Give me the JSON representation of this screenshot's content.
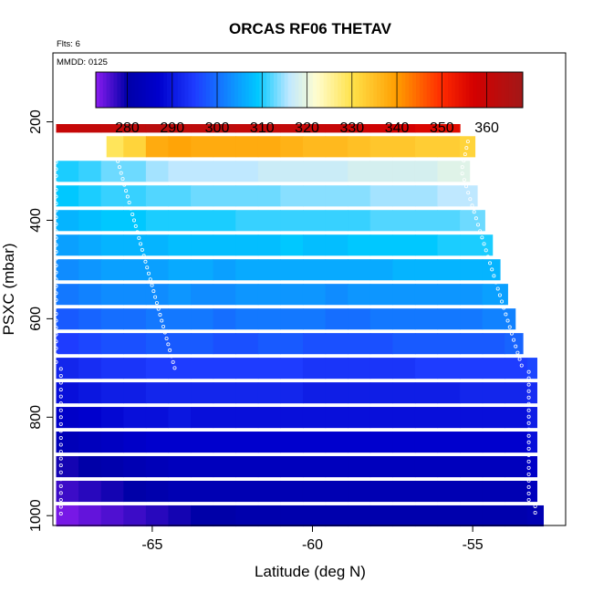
{
  "chart_data": {
    "type": "heatmap",
    "title": "ORCAS RF06 THETAV",
    "flights_note": "Flts: 6",
    "date_note": "MMDD: 0125",
    "xlabel": "Latitude (deg N)",
    "ylabel": "PSXC (mbar)",
    "x_ticks": [
      -65,
      -60,
      -55
    ],
    "y_ticks": [
      200,
      400,
      600,
      800,
      1000
    ],
    "y_reversed": true,
    "colorbar_ticks": [
      280,
      290,
      300,
      310,
      320,
      330,
      340,
      350,
      360
    ],
    "colorbar_range": [
      273,
      368
    ],
    "colorbar_stops": [
      {
        "v": 273,
        "c": "#8b1cf0"
      },
      {
        "v": 280,
        "c": "#0000a8"
      },
      {
        "v": 287,
        "c": "#0000cd"
      },
      {
        "v": 295,
        "c": "#1e3cff"
      },
      {
        "v": 303,
        "c": "#0f8cff"
      },
      {
        "v": 309,
        "c": "#00c8ff"
      },
      {
        "v": 316,
        "c": "#bfe8ff"
      },
      {
        "v": 322,
        "c": "#fffdd0"
      },
      {
        "v": 330,
        "c": "#ffe24a"
      },
      {
        "v": 340,
        "c": "#ff9d00"
      },
      {
        "v": 350,
        "c": "#ff2a00"
      },
      {
        "v": 357,
        "c": "#d40000"
      },
      {
        "v": 368,
        "c": "#a21818"
      }
    ],
    "xlim": [
      -68.1,
      -52.1
    ],
    "ylim": [
      1020,
      60
    ],
    "lat_bins": [
      -68.0,
      -67.3,
      -66.6,
      -65.9,
      -65.2,
      -64.5,
      -63.8,
      -63.1,
      -62.4,
      -61.7,
      -61.0,
      -60.3,
      -59.6,
      -58.9,
      -58.2,
      -57.5,
      -56.8,
      -56.1,
      -55.4,
      -54.7,
      -54.0,
      -53.3,
      -52.8
    ],
    "pressure_levels": [
      {
        "p": 1000,
        "theta": [
          274,
          275,
          276,
          277,
          278,
          279,
          280,
          280,
          281,
          281,
          281,
          281,
          281,
          281,
          281,
          281,
          281,
          281,
          281,
          281,
          281,
          282
        ]
      },
      {
        "p": 950,
        "theta": [
          277,
          278,
          279,
          280,
          281,
          282,
          282,
          282,
          282,
          282,
          282,
          282,
          282,
          282,
          282,
          282,
          282,
          282,
          282,
          282,
          282,
          284
        ]
      },
      {
        "p": 900,
        "theta": [
          279,
          280,
          281,
          282,
          283,
          284,
          284,
          284,
          284,
          284,
          284,
          284,
          284,
          284,
          284,
          284,
          284,
          284,
          284,
          284,
          284,
          286
        ]
      },
      {
        "p": 850,
        "theta": [
          283,
          284,
          285,
          286,
          287,
          287,
          287,
          287,
          287,
          287,
          287,
          287,
          287,
          287,
          287,
          287,
          287,
          287,
          287,
          287,
          287,
          289
        ]
      },
      {
        "p": 800,
        "theta": [
          286,
          287,
          288,
          289,
          289,
          290,
          289,
          289,
          289,
          289,
          289,
          289,
          289,
          289,
          289,
          289,
          289,
          289,
          289,
          289,
          289,
          291
        ]
      },
      {
        "p": 750,
        "theta": [
          289,
          290,
          291,
          291,
          292,
          292,
          292,
          292,
          292,
          292,
          292,
          291,
          291,
          291,
          291,
          291,
          291,
          291,
          292,
          292,
          292,
          293
        ]
      },
      {
        "p": 700,
        "theta": [
          292,
          293,
          294,
          294,
          295,
          295,
          295,
          295,
          295,
          295,
          295,
          294,
          294,
          294,
          294,
          294,
          295,
          295,
          295,
          295,
          295,
          296
        ]
      },
      {
        "p": 650,
        "theta": [
          295,
          296,
          297,
          297,
          298,
          298,
          298,
          297,
          297,
          298,
          298,
          297,
          297,
          297,
          297,
          298,
          298,
          298,
          298,
          298,
          299,
          299
        ]
      },
      {
        "p": 600,
        "theta": [
          298,
          299,
          300,
          300,
          301,
          301,
          301,
          300,
          301,
          301,
          301,
          301,
          300,
          300,
          301,
          301,
          301,
          301,
          301,
          302,
          302,
          302
        ]
      },
      {
        "p": 550,
        "theta": [
          301,
          302,
          303,
          303,
          303,
          304,
          303,
          303,
          304,
          304,
          304,
          304,
          303,
          304,
          304,
          304,
          304,
          304,
          304,
          305,
          305,
          305
        ]
      },
      {
        "p": 500,
        "theta": [
          303,
          304,
          305,
          305,
          305,
          306,
          306,
          305,
          306,
          306,
          306,
          306,
          306,
          306,
          306,
          307,
          307,
          307,
          307,
          307,
          308,
          308
        ]
      },
      {
        "p": 450,
        "theta": [
          305,
          306,
          307,
          307,
          307,
          308,
          308,
          308,
          308,
          308,
          309,
          308,
          308,
          309,
          309,
          309,
          309,
          310,
          310,
          310,
          311,
          311
        ]
      },
      {
        "p": 400,
        "theta": [
          307,
          308,
          309,
          309,
          310,
          310,
          310,
          310,
          311,
          311,
          311,
          311,
          311,
          311,
          312,
          312,
          312,
          312,
          313,
          313,
          314,
          314
        ]
      },
      {
        "p": 350,
        "theta": [
          309,
          310,
          311,
          311,
          312,
          312,
          313,
          313,
          313,
          313,
          314,
          314,
          314,
          314,
          315,
          315,
          315,
          316,
          316,
          317,
          317,
          318
        ]
      },
      {
        "p": 300,
        "theta": [
          310,
          311,
          313,
          313,
          315,
          316,
          316,
          316,
          316,
          317,
          317,
          317,
          317,
          318,
          318,
          318,
          318,
          319,
          319,
          320,
          321,
          322
        ]
      },
      {
        "p": 250,
        "theta": [
          326,
          327,
          329,
          332,
          338,
          339,
          338,
          338,
          338,
          338,
          337,
          336,
          336,
          335,
          334,
          334,
          333,
          333,
          332,
          330,
          328,
          334
        ]
      },
      {
        "p": 200,
        "theta": [
          360,
          361,
          361,
          362,
          363,
          362,
          362,
          362,
          361,
          361,
          361,
          360,
          360,
          359,
          358,
          357,
          356,
          355,
          354,
          353,
          351,
          345
        ]
      }
    ]
  }
}
